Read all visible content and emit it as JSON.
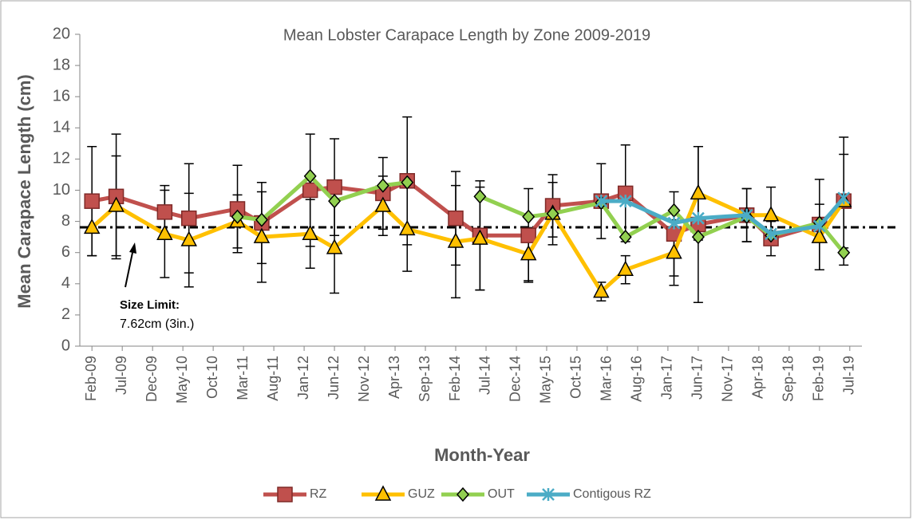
{
  "chart_data": {
    "type": "line",
    "title": "Mean Lobster Carapace Length by Zone 2009-2019",
    "x_label": "Month-Year",
    "y_label": "Mean Carapace Length (cm)",
    "x": [
      "Feb-09",
      "Jun-09",
      "Feb-10",
      "Jun-10",
      "Feb-11",
      "Jun-11",
      "Feb-12",
      "Jun-12",
      "Feb-13",
      "Jun-13",
      "Feb-14",
      "Jun-14",
      "Feb-15",
      "Jun-15",
      "Feb-16",
      "Jun-16",
      "Feb-17",
      "Jun-17",
      "Feb-18",
      "Jun-18",
      "Feb-19",
      "Jun-19"
    ],
    "xlim": [
      "Dec-08",
      "Sep-19"
    ],
    "xticks": [
      "Feb-09",
      "Jul-09",
      "Dec-09",
      "May-10",
      "Oct-10",
      "Mar-11",
      "Aug-11",
      "Jan-12",
      "Jun-12",
      "Nov-12",
      "Apr-13",
      "Sep-13",
      "Feb-14",
      "Jul-14",
      "Dec-14",
      "May-15",
      "Oct-15",
      "Mar-16",
      "Aug-16",
      "Jan-17",
      "Jun-17",
      "Nov-17",
      "Apr-18",
      "Sep-18",
      "Feb-19",
      "Jul-19"
    ],
    "ylim": [
      0,
      20
    ],
    "yticks": [
      0,
      2,
      4,
      6,
      8,
      10,
      12,
      14,
      16,
      18,
      20
    ],
    "grid": false,
    "legend": "bottom",
    "series": [
      {
        "name": "RZ",
        "color": "#c0504d",
        "marker": "square",
        "values": [
          9.3,
          9.6,
          8.6,
          8.2,
          8.8,
          7.9,
          10.0,
          10.2,
          9.8,
          10.6,
          8.2,
          7.1,
          7.1,
          9.0,
          9.3,
          9.8,
          7.2,
          7.8,
          8.4,
          6.9,
          7.8,
          9.3
        ],
        "errors": [
          3.5,
          4.0,
          1.7,
          3.5,
          2.8,
          2.6,
          3.6,
          3.1,
          2.3,
          4.1,
          3.0,
          3.5,
          3.0,
          2.0,
          2.4,
          3.1,
          2.7,
          5.0,
          1.7,
          1.1,
          2.9,
          4.1
        ]
      },
      {
        "name": "GUZ",
        "color": "#ffc000",
        "marker": "triangle",
        "values": [
          7.6,
          9.0,
          7.2,
          6.8,
          8.0,
          7.0,
          7.2,
          6.3,
          9.0,
          7.5,
          6.7,
          6.9,
          5.9,
          8.5,
          3.5,
          4.9,
          6.0,
          9.8,
          8.4,
          8.4,
          7.0,
          9.3
        ],
        "errors": [
          1.8,
          3.2,
          2.8,
          3.0,
          1.7,
          2.9,
          2.2,
          2.9,
          1.9,
          2.7,
          3.6,
          3.3,
          1.7,
          2.0,
          0.6,
          0.9,
          2.1,
          3.0,
          1.7,
          1.8,
          2.1,
          3.0
        ]
      },
      {
        "name": "OUT",
        "color": "#92d050",
        "marker": "diamond",
        "values": [
          null,
          null,
          null,
          null,
          8.3,
          8.1,
          10.9,
          9.3,
          10.3,
          10.5,
          null,
          9.6,
          8.3,
          8.5,
          9.2,
          7.0,
          8.7,
          7.0,
          8.3,
          7.1,
          7.9,
          6.0
        ]
      },
      {
        "name": "Contigous RZ",
        "color": "#4bacc6",
        "marker": "star",
        "values": [
          null,
          null,
          null,
          null,
          null,
          null,
          null,
          null,
          null,
          null,
          null,
          null,
          null,
          null,
          9.3,
          9.3,
          7.9,
          8.2,
          8.4,
          7.2,
          7.7,
          9.5
        ]
      }
    ],
    "reference_line": 7.62,
    "annotation": [
      "Size Limit:",
      "7.62cm (3in.)"
    ]
  }
}
